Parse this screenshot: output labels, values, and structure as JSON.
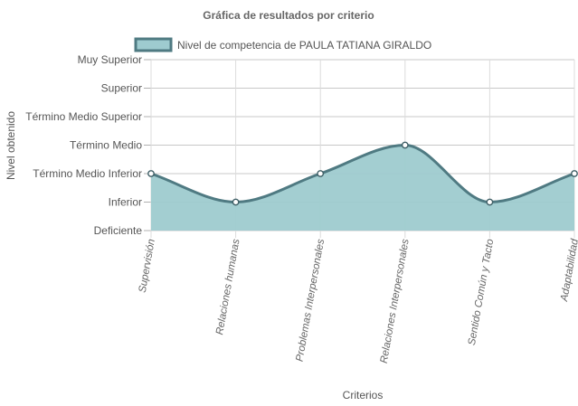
{
  "chart_data": {
    "type": "area",
    "title": "Gráfica de resultados por criterio",
    "xlabel": "Criterios",
    "ylabel": "Nivel obtenido",
    "levels": [
      "Deficiente",
      "Inferior",
      "Término Medio Inferior",
      "Término Medio",
      "Término Medio Superior",
      "Superior",
      "Muy Superior"
    ],
    "categories": [
      "Supervisión",
      "Relaciones humanas",
      "Problemas Interpersonales",
      "Relaciones Interpersonales",
      "Sentido Común y Tacto",
      "Adaptabilidad"
    ],
    "series": [
      {
        "name": "Nivel de competencia de PAULA TATIANA GIRALDO",
        "values": [
          2,
          1,
          2,
          3,
          1,
          2
        ]
      }
    ],
    "ylim": [
      0,
      6
    ],
    "grid": true,
    "legend_position": "top",
    "colors": {
      "fill": "#9ecbcf",
      "line": "#4f7a82",
      "point_fill": "#ffffff",
      "point_stroke": "#3f5f66"
    }
  }
}
